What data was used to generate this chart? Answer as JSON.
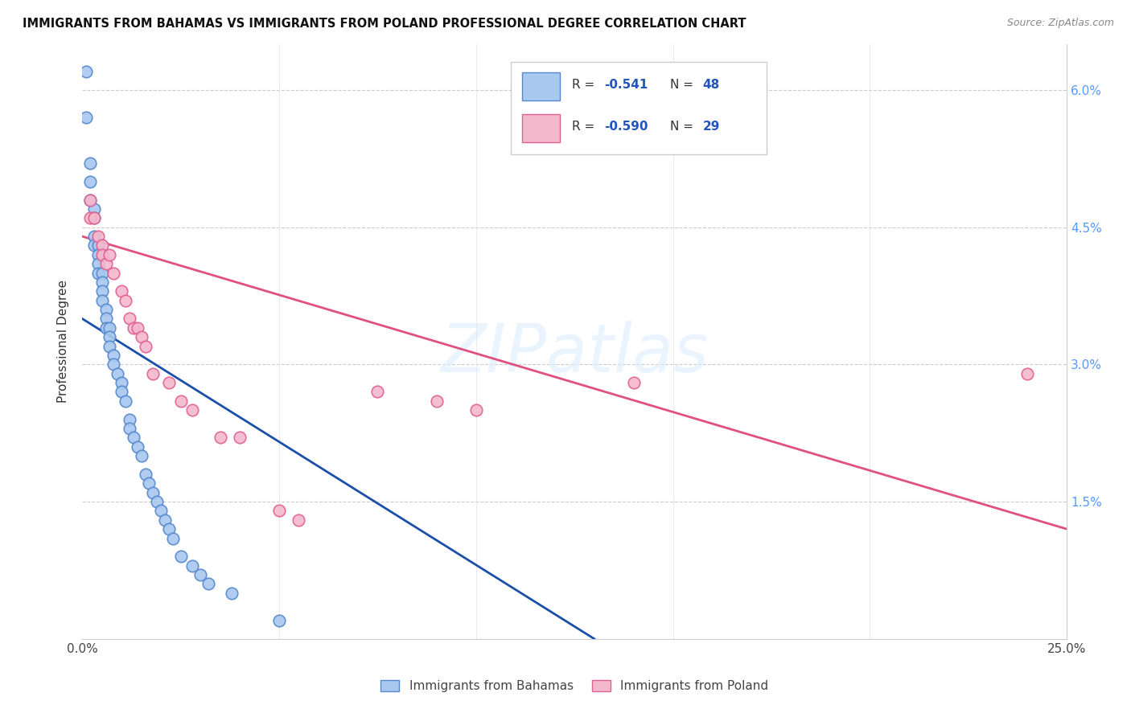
{
  "title": "IMMIGRANTS FROM BAHAMAS VS IMMIGRANTS FROM POLAND PROFESSIONAL DEGREE CORRELATION CHART",
  "source": "Source: ZipAtlas.com",
  "ylabel": "Professional Degree",
  "xlim": [
    0.0,
    0.25
  ],
  "ylim": [
    0.0,
    0.065
  ],
  "color_bahamas": "#a8c8f0",
  "color_poland": "#f4b8cc",
  "edge_bahamas": "#5588cc",
  "edge_poland": "#e06090",
  "line_bahamas": "#1a4faa",
  "line_poland": "#e05080",
  "watermark": "ZIPatlas",
  "legend_color": "#2255bb",
  "bahamas_x": [
    0.001,
    0.001,
    0.002,
    0.002,
    0.002,
    0.003,
    0.003,
    0.003,
    0.003,
    0.004,
    0.004,
    0.004,
    0.004,
    0.005,
    0.005,
    0.005,
    0.005,
    0.006,
    0.006,
    0.006,
    0.007,
    0.007,
    0.007,
    0.008,
    0.008,
    0.009,
    0.01,
    0.01,
    0.011,
    0.012,
    0.012,
    0.013,
    0.014,
    0.015,
    0.016,
    0.017,
    0.018,
    0.019,
    0.02,
    0.021,
    0.022,
    0.023,
    0.025,
    0.028,
    0.03,
    0.032,
    0.038,
    0.05
  ],
  "bahamas_y": [
    0.062,
    0.057,
    0.052,
    0.05,
    0.048,
    0.047,
    0.046,
    0.044,
    0.043,
    0.043,
    0.042,
    0.041,
    0.04,
    0.04,
    0.039,
    0.038,
    0.037,
    0.036,
    0.035,
    0.034,
    0.034,
    0.033,
    0.032,
    0.031,
    0.03,
    0.029,
    0.028,
    0.027,
    0.026,
    0.024,
    0.023,
    0.022,
    0.021,
    0.02,
    0.018,
    0.017,
    0.016,
    0.015,
    0.014,
    0.013,
    0.012,
    0.011,
    0.009,
    0.008,
    0.007,
    0.006,
    0.005,
    0.002
  ],
  "poland_x": [
    0.002,
    0.002,
    0.003,
    0.004,
    0.005,
    0.005,
    0.006,
    0.007,
    0.008,
    0.01,
    0.011,
    0.012,
    0.013,
    0.014,
    0.015,
    0.016,
    0.018,
    0.022,
    0.025,
    0.028,
    0.035,
    0.04,
    0.05,
    0.055,
    0.075,
    0.09,
    0.1,
    0.14,
    0.24
  ],
  "poland_y": [
    0.048,
    0.046,
    0.046,
    0.044,
    0.043,
    0.042,
    0.041,
    0.042,
    0.04,
    0.038,
    0.037,
    0.035,
    0.034,
    0.034,
    0.033,
    0.032,
    0.029,
    0.028,
    0.026,
    0.025,
    0.022,
    0.022,
    0.014,
    0.013,
    0.027,
    0.026,
    0.025,
    0.028,
    0.029
  ],
  "blue_line_x": [
    0.0,
    0.13
  ],
  "blue_line_y": [
    0.035,
    0.0
  ],
  "pink_line_x": [
    0.0,
    0.25
  ],
  "pink_line_y": [
    0.044,
    0.012
  ]
}
